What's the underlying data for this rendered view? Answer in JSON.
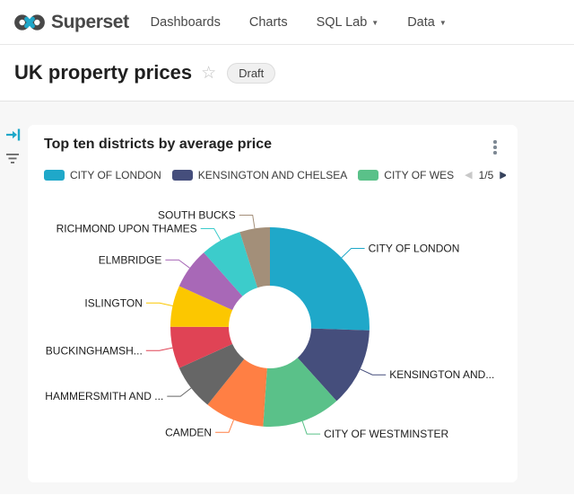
{
  "theme": {
    "accent": "#20A7C9",
    "page_background": "#F7F7F7",
    "brand_dark": "#484848"
  },
  "icons": {
    "logo": "infinity-logo",
    "nav_caret": "caret-down",
    "favorite": "star-outline",
    "card_menu": "kebab-vertical",
    "legend_prev": "triangle-left",
    "legend_next": "triangle-right",
    "sidebar": [
      "expand-filter-bar-arrow",
      "filter-lines"
    ]
  },
  "header": {
    "brand": "Superset",
    "nav_items": [
      {
        "label": "Dashboards",
        "has_caret": false
      },
      {
        "label": "Charts",
        "has_caret": false
      },
      {
        "label": "SQL Lab",
        "has_caret": true
      },
      {
        "label": "Data",
        "has_caret": true
      }
    ]
  },
  "page": {
    "title": "UK property prices",
    "status_badge": "Draft"
  },
  "card": {
    "title": "Top ten districts by average price",
    "legend": {
      "visible_items": [
        {
          "label": "CITY OF LONDON",
          "color": "#1FA8C9"
        },
        {
          "label": "KENSINGTON AND CHELSEA",
          "color": "#454E7C"
        },
        {
          "label": "CITY OF WES",
          "color": "#5AC189"
        }
      ],
      "page_indicator": "1/5",
      "prev_glyph": "◀",
      "next_glyph": "▶"
    }
  },
  "chart_data": {
    "type": "pie",
    "donut": true,
    "title": "Top ten districts by average price",
    "legend_position": "top",
    "legend_pages": "1/5",
    "categories": [
      "CITY OF LONDON",
      "KENSINGTON AND CHELSEA",
      "CITY OF WESTMINSTER",
      "CAMDEN",
      "HAMMERSMITH AND ...",
      "BUCKINGHAMSH...",
      "ISLINGTON",
      "ELMBRIDGE",
      "RICHMOND UPON THAMES",
      "SOUTH BUCKS"
    ],
    "labels_as_displayed": [
      "CITY OF LONDON",
      "KENSINGTON AND...",
      "CITY OF WESTMINSTER",
      "CAMDEN",
      "HAMMERSMITH AND ...",
      "BUCKINGHAMSH...",
      "ISLINGTON",
      "ELMBRIDGE",
      "RICHMOND UPON THAMES",
      "SOUTH BUCKS"
    ],
    "values_pct_estimated": [
      25.6,
      12.8,
      12.8,
      9.7,
      7.5,
      6.8,
      6.7,
      6.7,
      6.7,
      4.9
    ],
    "colors": [
      "#1FA8C9",
      "#454E7C",
      "#5AC189",
      "#FF7F44",
      "#666666",
      "#E04355",
      "#FCC700",
      "#A868B7",
      "#3CCCCB",
      "#A38F79"
    ]
  }
}
